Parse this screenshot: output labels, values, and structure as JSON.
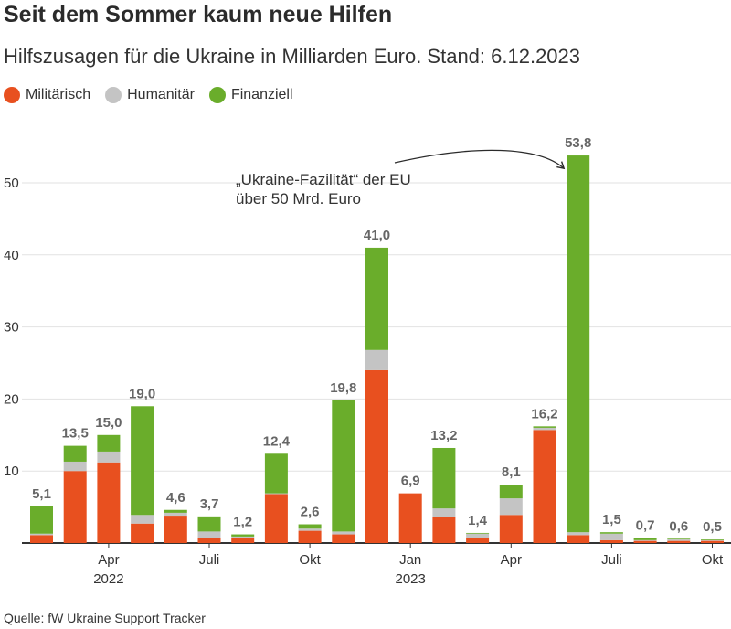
{
  "title": "Seit dem Sommer kaum neue Hilfen",
  "subtitle": "Hilfszusagen für die Ukraine in Milliarden Euro. Stand: 6.12.2023",
  "source": "Quelle: fW Ukraine Support Tracker",
  "legend": [
    {
      "label": "Militärisch",
      "color": "#e8501f"
    },
    {
      "label": "Humanitär",
      "color": "#c4c4c4"
    },
    {
      "label": "Finanziell",
      "color": "#6aad2b"
    }
  ],
  "colors": {
    "grid": "#e2e2e2",
    "axis": "#333333",
    "label": "#666666",
    "text": "#333333"
  },
  "chart_data": {
    "type": "bar",
    "stacked": true,
    "ylim": [
      0,
      60
    ],
    "yticks": [
      10,
      20,
      30,
      40,
      50
    ],
    "grid": true,
    "legend_position": "top-left",
    "x_tick_labels": [
      {
        "index": 2,
        "label": "Apr",
        "sublabel": "2022"
      },
      {
        "index": 5,
        "label": "Juli",
        "sublabel": ""
      },
      {
        "index": 8,
        "label": "Okt",
        "sublabel": ""
      },
      {
        "index": 11,
        "label": "Jan",
        "sublabel": "2023"
      },
      {
        "index": 14,
        "label": "Apr",
        "sublabel": ""
      },
      {
        "index": 17,
        "label": "Juli",
        "sublabel": ""
      },
      {
        "index": 20,
        "label": "Okt",
        "sublabel": ""
      }
    ],
    "series": [
      {
        "name": "Militärisch",
        "color": "#e8501f",
        "values": [
          1.1,
          10.0,
          11.2,
          2.7,
          3.8,
          0.7,
          0.7,
          6.8,
          1.7,
          1.2,
          24.0,
          6.9,
          3.6,
          0.7,
          3.9,
          15.7,
          1.1,
          0.4,
          0.3,
          0.3,
          0.3
        ]
      },
      {
        "name": "Humanitär",
        "color": "#c4c4c4",
        "values": [
          0.2,
          1.3,
          1.5,
          1.2,
          0.4,
          0.9,
          0.2,
          0.1,
          0.3,
          0.4,
          2.8,
          0.0,
          1.2,
          0.6,
          2.3,
          0.3,
          0.4,
          0.9,
          0.1,
          0.2,
          0.1
        ]
      },
      {
        "name": "Finanziell",
        "color": "#6aad2b",
        "values": [
          3.8,
          2.2,
          2.3,
          15.1,
          0.4,
          2.1,
          0.3,
          5.5,
          0.6,
          18.2,
          14.2,
          0.0,
          8.4,
          0.1,
          1.9,
          0.2,
          52.3,
          0.2,
          0.3,
          0.1,
          0.1
        ]
      }
    ],
    "totals": [
      "5,1",
      "13,5",
      "15,0",
      "19,0",
      "4,6",
      "3,7",
      "1,2",
      "12,4",
      "2,6",
      "19,8",
      "41,0",
      "6,9",
      "13,2",
      "1,4",
      "8,1",
      "16,2",
      "53,8",
      "1,5",
      "0,7",
      "0,6",
      "0,5"
    ],
    "annotation": {
      "lines": [
        "„Ukraine-Fazilität“ der EU",
        "über 50 Mrd. Euro"
      ],
      "target_index": 16
    }
  }
}
